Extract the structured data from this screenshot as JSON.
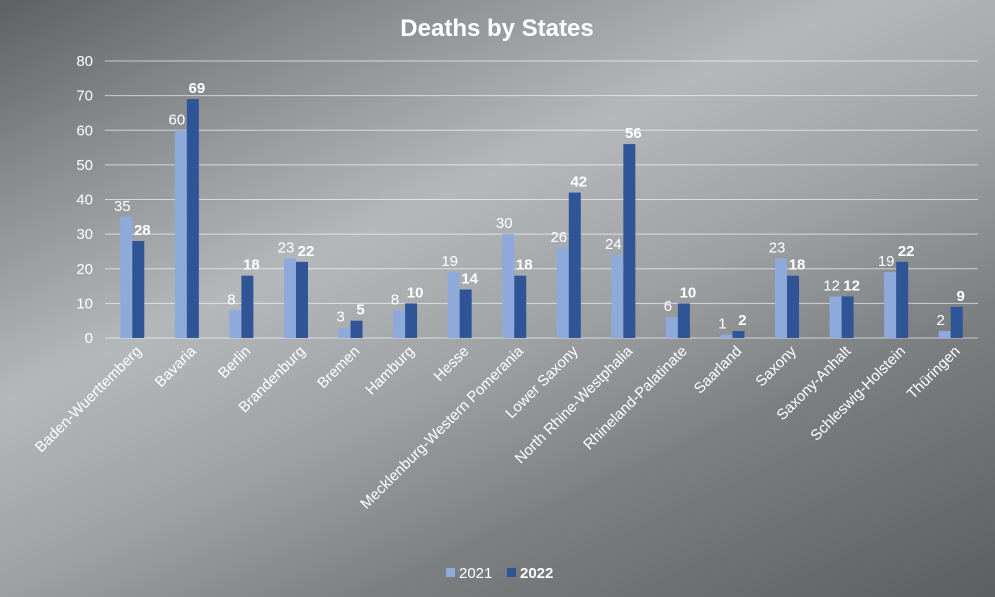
{
  "chart_data": {
    "type": "bar",
    "title": "Deaths by States",
    "xlabel": "",
    "ylabel": "",
    "ylim": [
      0,
      80
    ],
    "yticks": [
      0,
      10,
      20,
      30,
      40,
      50,
      60,
      70,
      80
    ],
    "grid": true,
    "legend_position": "bottom",
    "categories": [
      "Baden-Wuerttemberg",
      "Bavaria",
      "Berlin",
      "Brandenburg",
      "Bremen",
      "Hamburg",
      "Hesse",
      "Mecklenburg-Western Pomerania",
      "Lower Saxony",
      "North Rhine-Westphalia",
      "Rhineland-Palatinate",
      "Saarland",
      "Saxony",
      "Saxony-Anhalt",
      "Schleswig-Holstein",
      "Thüringen"
    ],
    "series": [
      {
        "name": "2021",
        "color": "#8eaadb",
        "values": [
          35,
          60,
          8,
          23,
          3,
          8,
          19,
          30,
          26,
          24,
          6,
          1,
          23,
          12,
          19,
          2
        ]
      },
      {
        "name": "2022",
        "color": "#2f5597",
        "values": [
          28,
          69,
          18,
          22,
          5,
          10,
          14,
          18,
          42,
          56,
          10,
          2,
          18,
          12,
          22,
          9
        ]
      }
    ]
  }
}
